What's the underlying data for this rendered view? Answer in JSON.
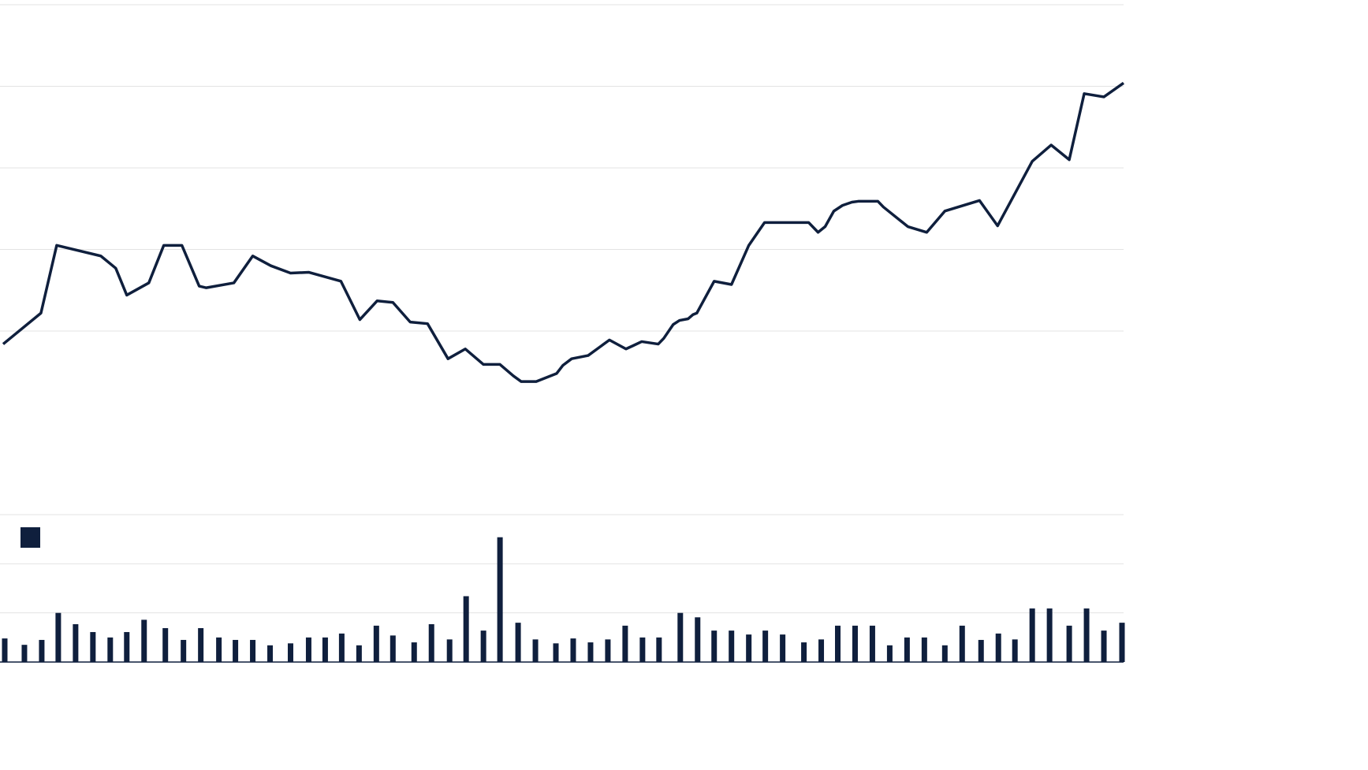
{
  "chart_data": [
    {
      "type": "line",
      "color": "#0f1f3d",
      "grid": true,
      "xlim": [
        0,
        1425
      ],
      "ylim": [
        0,
        6
      ],
      "yticks": [
        2,
        3,
        4,
        5,
        6
      ],
      "x": [
        2,
        50,
        70,
        126,
        145,
        159,
        187,
        206,
        229,
        251,
        260,
        295,
        319,
        342,
        367,
        390,
        431,
        455,
        477,
        497,
        519,
        541,
        567,
        589,
        612,
        633,
        650,
        660,
        679,
        705,
        713,
        724,
        745,
        772,
        793,
        802,
        813,
        834,
        841,
        853,
        861,
        872,
        878,
        883,
        905,
        927,
        949,
        969,
        1025,
        1037,
        1046,
        1057,
        1068,
        1080,
        1088,
        1113,
        1120,
        1151,
        1175,
        1198,
        1242,
        1265,
        1309,
        1333,
        1356,
        1375,
        1400,
        1425
      ],
      "values": [
        1.84,
        2.22,
        3.05,
        2.92,
        2.77,
        2.44,
        2.59,
        3.05,
        3.05,
        2.55,
        2.53,
        2.59,
        2.92,
        2.8,
        2.71,
        2.72,
        2.61,
        2.14,
        2.37,
        2.35,
        2.11,
        2.09,
        1.66,
        1.78,
        1.59,
        1.59,
        1.45,
        1.38,
        1.38,
        1.48,
        1.58,
        1.66,
        1.7,
        1.89,
        1.78,
        1.82,
        1.87,
        1.84,
        1.91,
        2.08,
        2.13,
        2.15,
        2.2,
        2.22,
        2.61,
        2.57,
        3.05,
        3.33,
        3.33,
        3.21,
        3.28,
        3.47,
        3.54,
        3.58,
        3.59,
        3.59,
        3.52,
        3.28,
        3.21,
        3.47,
        3.6,
        3.29,
        4.08,
        4.28,
        4.1,
        4.91,
        4.87,
        5.04
      ]
    },
    {
      "type": "bar",
      "color": "#0f1f3d",
      "grid": true,
      "xlim": [
        0,
        1425
      ],
      "ylim": [
        0,
        3
      ],
      "yticks": [
        1,
        2,
        3
      ],
      "x": [
        4,
        29,
        51,
        72,
        94,
        116,
        138,
        159,
        181,
        208,
        231,
        253,
        276,
        297,
        319,
        341,
        367,
        390,
        411,
        432,
        454,
        476,
        497,
        524,
        546,
        569,
        590,
        612,
        633,
        656,
        678,
        704,
        726,
        748,
        770,
        792,
        814,
        835,
        862,
        884,
        905,
        927,
        949,
        970,
        992,
        1019,
        1041,
        1062,
        1084,
        1106,
        1128,
        1150,
        1172,
        1198,
        1220,
        1244,
        1266,
        1287,
        1309,
        1331,
        1356,
        1378,
        1400,
        1423
      ],
      "values": [
        0.48,
        0.35,
        0.45,
        1.0,
        0.77,
        0.61,
        0.5,
        0.61,
        0.86,
        0.69,
        0.45,
        0.69,
        0.5,
        0.45,
        0.45,
        0.34,
        0.38,
        0.5,
        0.5,
        0.58,
        0.34,
        0.74,
        0.54,
        0.4,
        0.77,
        0.46,
        1.34,
        0.64,
        2.54,
        0.8,
        0.46,
        0.38,
        0.48,
        0.4,
        0.46,
        0.74,
        0.5,
        0.5,
        1.0,
        0.91,
        0.64,
        0.64,
        0.56,
        0.64,
        0.56,
        0.4,
        0.46,
        0.74,
        0.74,
        0.74,
        0.34,
        0.5,
        0.5,
        0.34,
        0.74,
        0.45,
        0.58,
        0.46,
        1.09,
        1.09,
        0.74,
        1.09,
        0.64,
        0.8
      ]
    }
  ]
}
